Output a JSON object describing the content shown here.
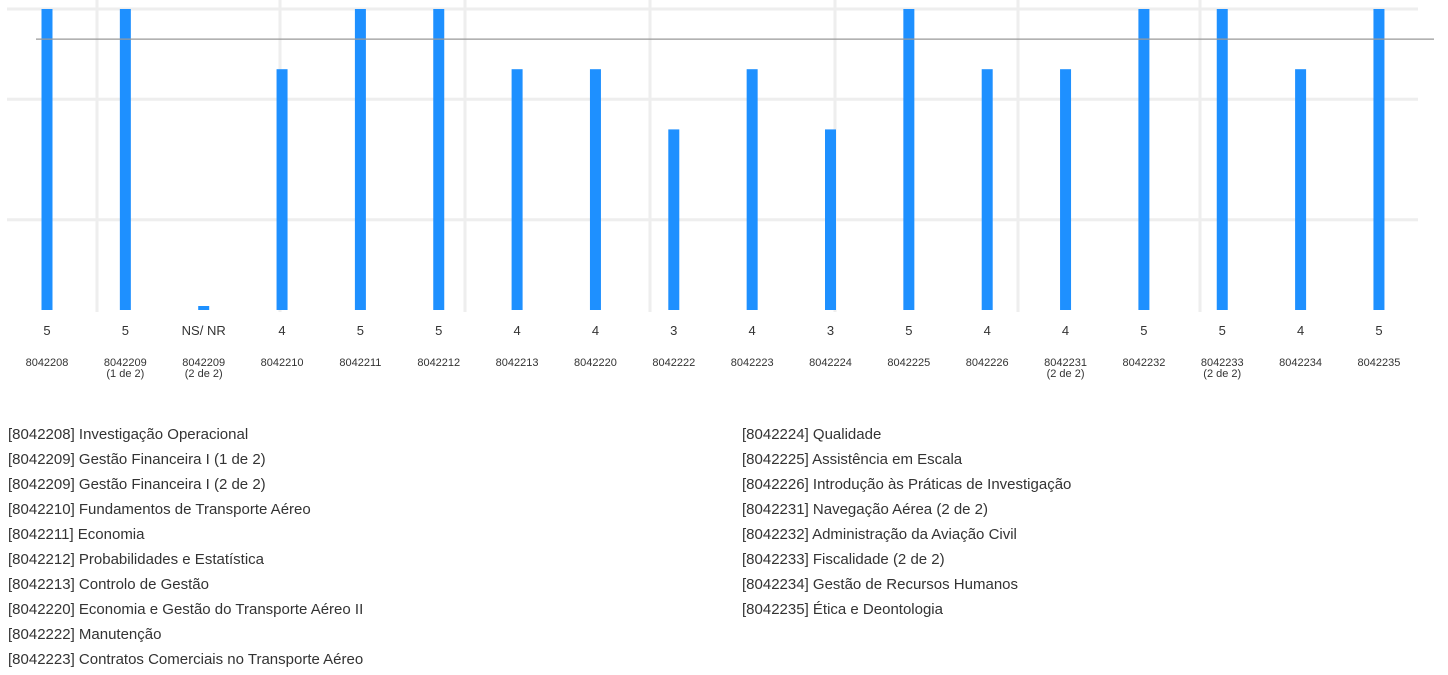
{
  "chart_data": {
    "type": "bar",
    "categories": [
      "8042208",
      "8042209\n(1 de 2)",
      "8042209\n(2 de 2)",
      "8042210",
      "8042211",
      "8042212",
      "8042213",
      "8042220",
      "8042222",
      "8042223",
      "8042224",
      "8042225",
      "8042226",
      "8042231\n(2 de 2)",
      "8042232",
      "8042233\n(2 de 2)",
      "8042234",
      "8042235"
    ],
    "values": [
      5,
      5,
      0,
      4,
      5,
      5,
      4,
      4,
      3,
      4,
      3,
      5,
      4,
      4,
      5,
      5,
      4,
      5
    ],
    "value_labels": [
      "5",
      "5",
      "NS/ NR",
      "4",
      "5",
      "5",
      "4",
      "4",
      "3",
      "4",
      "3",
      "5",
      "4",
      "4",
      "5",
      "5",
      "4",
      "5"
    ],
    "title": "",
    "xlabel": "",
    "ylabel": "",
    "ylim": [
      0,
      5
    ],
    "reference_line": 4.5,
    "grid": true,
    "bar_color": "#1e90ff",
    "reference_line_color": "#999999",
    "legend_left": [
      "[8042208] Investigação Operacional",
      "[8042209] Gestão Financeira I (1 de 2)",
      "[8042209] Gestão Financeira I (2 de 2)",
      "[8042210] Fundamentos de Transporte Aéreo",
      "[8042211] Economia",
      "[8042212] Probabilidades e Estatística",
      "[8042213] Controlo de Gestão",
      "[8042220] Economia e Gestão do Transporte Aéreo II",
      "[8042222] Manutenção",
      "[8042223] Contratos Comerciais no Transporte Aéreo"
    ],
    "legend_right": [
      "[8042224] Qualidade",
      "[8042225] Assistência em Escala",
      "[8042226] Introdução às Práticas de Investigação",
      "[8042231] Navegação Aérea (2 de 2)",
      "[8042232] Administração da Aviação Civil",
      "[8042233] Fiscalidade (2 de 2)",
      "[8042234] Gestão de Recursos Humanos",
      "[8042235] Ética e Deontologia"
    ]
  }
}
